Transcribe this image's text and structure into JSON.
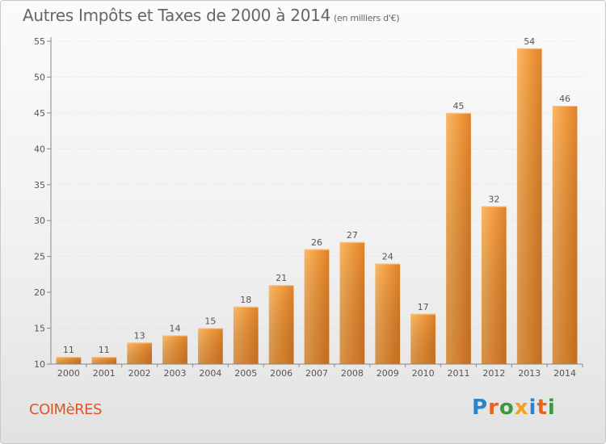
{
  "page": {
    "title": "Autres Impôts et Taxes de 2000 à 2014",
    "subtitle": "(en milliers d'€)",
    "commune": "COIMèRES",
    "brand": "Proxiti",
    "brand_colors": [
      "#2a84c9",
      "#e8641b",
      "#3c9a3a",
      "#f2a11c",
      "#2a84c9",
      "#e8641b",
      "#3c9a3a"
    ]
  },
  "chart_data": {
    "type": "bar",
    "title": "Autres Impôts et Taxes de 2000 à 2014",
    "subtitle": "(en milliers d'€)",
    "xlabel": "",
    "ylabel": "",
    "categories": [
      "2000",
      "2001",
      "2002",
      "2003",
      "2004",
      "2005",
      "2006",
      "2007",
      "2008",
      "2009",
      "2010",
      "2011",
      "2012",
      "2013",
      "2014"
    ],
    "values": [
      11,
      11,
      13,
      14,
      15,
      18,
      21,
      26,
      27,
      24,
      17,
      45,
      32,
      54,
      46
    ],
    "ylim": [
      10,
      55
    ],
    "yticks": [
      10,
      15,
      20,
      25,
      30,
      35,
      40,
      45,
      50,
      55
    ],
    "grid": true,
    "legend": "none",
    "colors": {
      "bar_light": "#f9a84f",
      "bar_dark": "#d06c12",
      "grid": "#dddddd",
      "axis": "#888888",
      "text": "#555555"
    }
  }
}
